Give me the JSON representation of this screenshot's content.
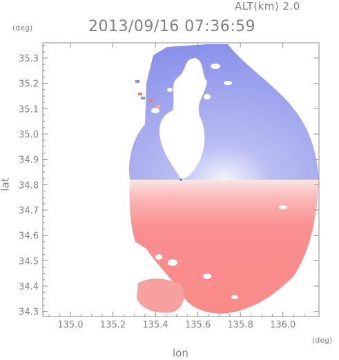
{
  "header": {
    "altitude_label": "ALT(km) 2.0",
    "datetime": "2013/09/16 07:36:59"
  },
  "axes": {
    "x_unit": "(deg)",
    "y_unit": "(deg)",
    "x_label": "lon",
    "y_label": "lat"
  },
  "chart_data": {
    "type": "heatmap",
    "title": "2013/09/16 07:36:59",
    "subtitle": "ALT(km) 2.0",
    "xlabel": "lon",
    "ylabel": "lat",
    "x_unit": "(deg)",
    "y_unit": "(deg)",
    "xlim": [
      134.87,
      136.17
    ],
    "ylim": [
      34.28,
      35.36
    ],
    "x_ticks": [
      135.0,
      135.2,
      135.4,
      135.6,
      135.8,
      136.0
    ],
    "x_tick_labels": [
      "135.0",
      "135.2",
      "135.4",
      "135.6",
      "135.8",
      "136.0"
    ],
    "y_ticks": [
      34.3,
      34.4,
      34.5,
      34.6,
      34.7,
      34.8,
      34.9,
      35.0,
      35.1,
      35.2,
      35.3
    ],
    "y_tick_labels": [
      "34.3",
      "34.4",
      "34.5",
      "34.6",
      "34.7",
      "34.8",
      "34.9",
      "35.0",
      "35.1",
      "35.2",
      "35.3"
    ],
    "grid": false,
    "radar_center": {
      "lon": 135.52,
      "lat": 34.82
    },
    "colors": {
      "approaching": "#7b83e8",
      "receding": "#f98a8a",
      "near_zero": "#f3f3fb",
      "blank": "#ffffff"
    },
    "regions": [
      {
        "name": "north-approaching",
        "lat_range": [
          34.82,
          35.36
        ],
        "sign": "negative"
      },
      {
        "name": "south-receding",
        "lat_range": [
          34.28,
          34.82
        ],
        "sign": "positive"
      }
    ]
  }
}
